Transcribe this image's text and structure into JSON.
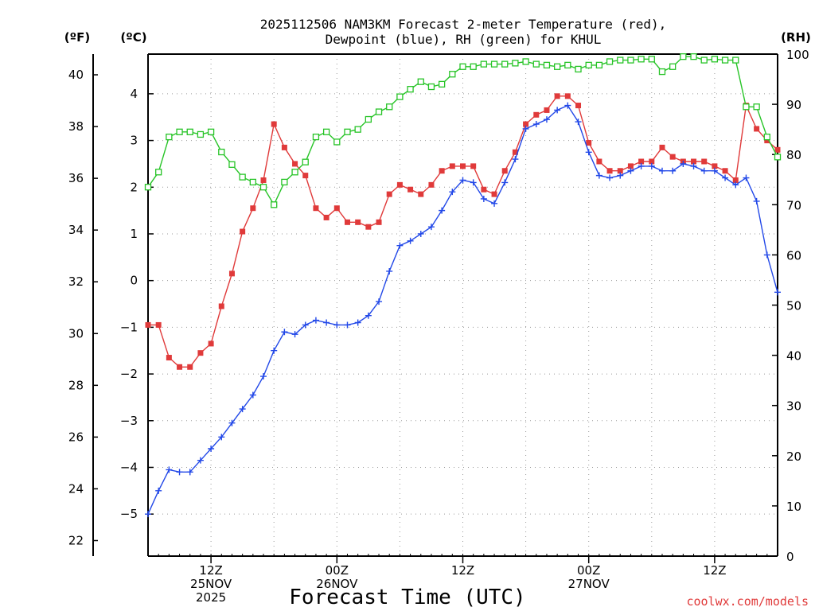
{
  "chart_data": {
    "type": "line",
    "title_lines": [
      "2025112506 NAM3KM Forecast 2-meter Temperature (red),",
      "Dewpoint (blue), RH (green) for KHUL"
    ],
    "xlabel": "Forecast Time (UTC)",
    "credit": "coolwx.com/models",
    "units": {
      "fahrenheit": "(ºF)",
      "celsius": "(ºC)",
      "rh": "(RH)"
    },
    "x_hours_range": [
      6,
      66
    ],
    "x_ticks": [
      {
        "hour": 12,
        "lines": [
          "12Z",
          "25NOV",
          "2025"
        ]
      },
      {
        "hour": 24,
        "lines": [
          "00Z",
          "26NOV"
        ]
      },
      {
        "hour": 36,
        "lines": [
          "12Z"
        ]
      },
      {
        "hour": 48,
        "lines": [
          "00Z",
          "27NOV"
        ]
      },
      {
        "hour": 60,
        "lines": [
          "12Z"
        ]
      }
    ],
    "celsius_axis": {
      "range": [
        -5.9,
        4.85
      ],
      "ticks": [
        -5,
        -4,
        -3,
        -2,
        -1,
        0,
        1,
        2,
        3,
        4
      ]
    },
    "fahrenheit_axis": {
      "range": [
        21.4,
        40.8
      ],
      "ticks": [
        "22",
        "24",
        "26",
        "28",
        "30",
        "32",
        "34",
        "36",
        "38",
        "40"
      ]
    },
    "rh_axis": {
      "range": [
        0,
        100
      ],
      "ticks": [
        0,
        10,
        20,
        30,
        40,
        50,
        60,
        70,
        80,
        90,
        100
      ]
    },
    "x_hours": [
      6,
      7,
      8,
      9,
      10,
      11,
      12,
      13,
      14,
      15,
      16,
      17,
      18,
      19,
      20,
      21,
      22,
      23,
      24,
      25,
      26,
      27,
      28,
      29,
      30,
      31,
      32,
      33,
      34,
      35,
      36,
      37,
      38,
      39,
      40,
      41,
      42,
      43,
      44,
      45,
      46,
      47,
      48,
      49,
      50,
      51,
      52,
      53,
      54,
      55,
      56,
      57,
      58,
      59,
      60,
      61,
      62,
      63,
      64,
      65,
      66
    ],
    "series": [
      {
        "name": "Temperature (°C)",
        "color": "#e03a3a",
        "axis": "celsius",
        "marker": "filled-square",
        "values": [
          -0.95,
          -0.95,
          -1.65,
          -1.85,
          -1.85,
          -1.55,
          -1.35,
          -0.55,
          0.15,
          1.05,
          1.55,
          2.15,
          3.35,
          2.85,
          2.5,
          2.25,
          1.55,
          1.35,
          1.55,
          1.25,
          1.25,
          1.15,
          1.25,
          1.85,
          2.05,
          1.95,
          1.85,
          2.05,
          2.35,
          2.45,
          2.45,
          2.45,
          1.95,
          1.85,
          2.35,
          2.75,
          3.35,
          3.55,
          3.65,
          3.95,
          3.95,
          3.75,
          2.95,
          2.55,
          2.35,
          2.35,
          2.45,
          2.55,
          2.55,
          2.85,
          2.65,
          2.55,
          2.55,
          2.55,
          2.45,
          2.35,
          2.15,
          3.75,
          3.25,
          3.0,
          2.8
        ]
      },
      {
        "name": "Dewpoint (°C)",
        "color": "#2248e8",
        "axis": "celsius",
        "marker": "plus",
        "values": [
          -5.0,
          -4.5,
          -4.05,
          -4.1,
          -4.1,
          -3.85,
          -3.6,
          -3.35,
          -3.05,
          -2.75,
          -2.45,
          -2.05,
          -1.5,
          -1.1,
          -1.15,
          -0.95,
          -0.85,
          -0.9,
          -0.95,
          -0.95,
          -0.9,
          -0.75,
          -0.45,
          0.2,
          0.75,
          0.85,
          1.0,
          1.15,
          1.5,
          1.9,
          2.15,
          2.1,
          1.75,
          1.65,
          2.1,
          2.6,
          3.25,
          3.35,
          3.45,
          3.65,
          3.75,
          3.4,
          2.75,
          2.25,
          2.2,
          2.25,
          2.35,
          2.45,
          2.45,
          2.35,
          2.35,
          2.5,
          2.45,
          2.35,
          2.35,
          2.2,
          2.05,
          2.2,
          1.7,
          0.55,
          -0.25
        ]
      },
      {
        "name": "RH (%)",
        "color": "#27c427",
        "axis": "rh",
        "marker": "open-square",
        "values": [
          73.5,
          76.5,
          83.5,
          84.5,
          84.5,
          84,
          84.5,
          80.5,
          78,
          75.5,
          74.5,
          73.5,
          70,
          74.5,
          76.5,
          78.5,
          83.5,
          84.5,
          82.5,
          84.5,
          85,
          87,
          88.5,
          89.5,
          91.5,
          93,
          94.5,
          93.5,
          94,
          96,
          97.5,
          97.5,
          98,
          98,
          98,
          98.2,
          98.5,
          98,
          97.8,
          97.5,
          97.8,
          97,
          97.8,
          97.8,
          98.5,
          98.8,
          98.8,
          99,
          99,
          96.5,
          97.5,
          99.5,
          99.5,
          98.8,
          99,
          98.8,
          98.8,
          89.5,
          89.5,
          83.5,
          79.5
        ]
      }
    ]
  }
}
